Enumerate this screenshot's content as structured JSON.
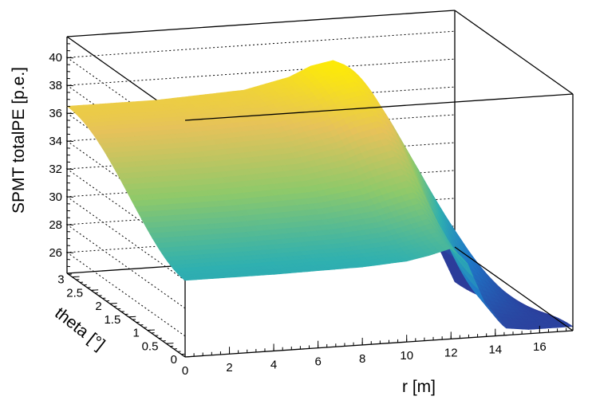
{
  "chart_data": {
    "type": "surface",
    "title": "",
    "xlabel": "r [m]",
    "ylabel": "theta [°]",
    "zlabel": "SPMT totalPE [p.e.]",
    "xlim": [
      0,
      17.5
    ],
    "ylim": [
      0,
      3.14
    ],
    "zlim": [
      24.5,
      41.5
    ],
    "x_ticks": [
      "0",
      "2",
      "4",
      "6",
      "8",
      "10",
      "12",
      "14",
      "16"
    ],
    "y_ticks": [
      "0",
      "0.5",
      "1",
      "1.5",
      "2",
      "2.5",
      "3"
    ],
    "z_ticks": [
      "26",
      "28",
      "30",
      "32",
      "34",
      "36",
      "38",
      "40"
    ],
    "grid": "z-dotted",
    "colormap": [
      "#2c3c9a",
      "#1f78c8",
      "#2fb0b0",
      "#8ec96a",
      "#e6c25a",
      "#ffee00"
    ],
    "surface_profile": {
      "description_rows": "totalPE vs r at theta=0 (front edge) and theta=pi (back edge)",
      "r": [
        0,
        4,
        8,
        10,
        11,
        12,
        12.7,
        13.5,
        14.5,
        15.5,
        16.5,
        17.5
      ],
      "z_theta_0": [
        30.0,
        30.0,
        30.1,
        30.3,
        30.6,
        31.0,
        30.0,
        27.0,
        25.0,
        24.8,
        24.8,
        24.8
      ],
      "z_theta_pi": [
        36.5,
        36.5,
        36.8,
        37.5,
        38.2,
        38.5,
        38.0,
        36.0,
        33.0,
        29.5,
        25.5,
        22.0
      ]
    }
  }
}
